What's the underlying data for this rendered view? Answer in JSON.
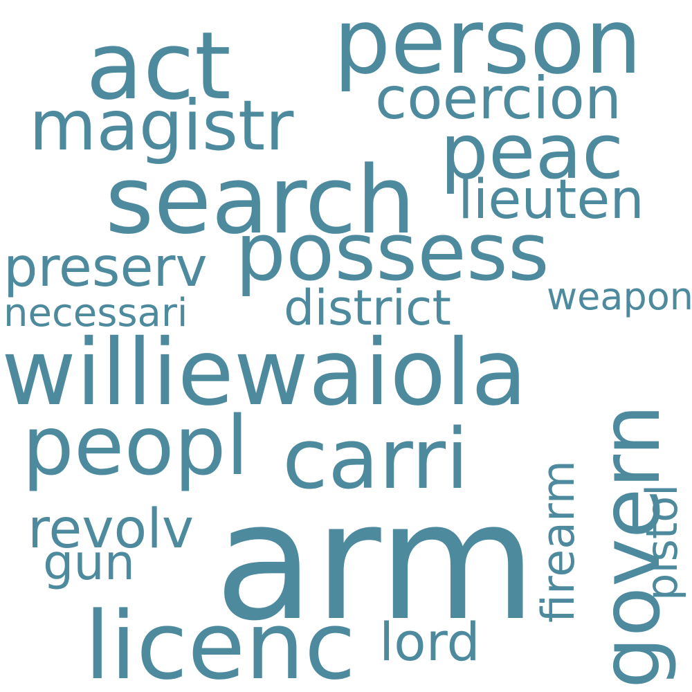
{
  "word_cloud": {
    "color": "#4e8a9e",
    "background": "#ffffff",
    "words": {
      "arm": "arm",
      "williewaiola": "williewaiola",
      "person": "person",
      "act": "act",
      "search": "search",
      "possess": "possess",
      "magistr": "magistr",
      "peac": "peac",
      "carri": "carri",
      "peopl": "peopl",
      "licenc": "licenc",
      "govern": "govern",
      "coercion": "coercion",
      "lieuten": "lieuten",
      "preserv": "preserv",
      "district": "district",
      "necessari": "necessari",
      "weapon": "weapon",
      "revolv": "revolv",
      "gun": "gun",
      "lord": "lord",
      "firearm": "firearm",
      "pistol": "pistol"
    }
  }
}
